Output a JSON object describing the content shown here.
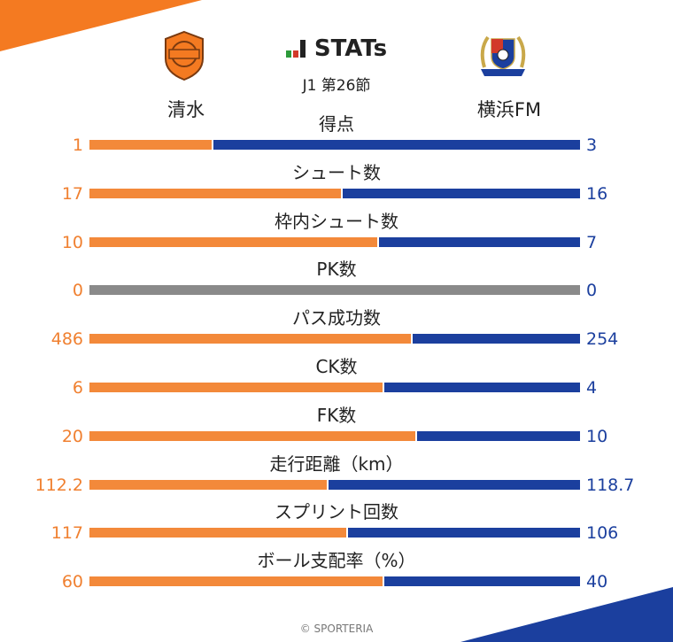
{
  "header": {
    "title": "STATs",
    "round": "J1 第26節",
    "home_team": "清水",
    "away_team": "横浜FM",
    "footer": "© SPORTERIA"
  },
  "colors": {
    "home": "#f3893a",
    "away": "#1b3f9e",
    "zero": "#8a8a8a",
    "home_text": "#f08030",
    "away_text": "#1b3f9e"
  },
  "chart_data": {
    "type": "bar",
    "categories": [
      "得点",
      "シュート数",
      "枠内シュート数",
      "PK数",
      "パス成功数",
      "CK数",
      "FK数",
      "走行距離（km）",
      "スプリント回数",
      "ボール支配率（%）"
    ],
    "series": [
      {
        "name": "清水",
        "values": [
          "1",
          "17",
          "10",
          "0",
          "486",
          "6",
          "20",
          "112.2",
          "117",
          "60"
        ]
      },
      {
        "name": "横浜FM",
        "values": [
          "3",
          "16",
          "7",
          "0",
          "254",
          "4",
          "10",
          "118.7",
          "106",
          "40"
        ]
      }
    ]
  }
}
